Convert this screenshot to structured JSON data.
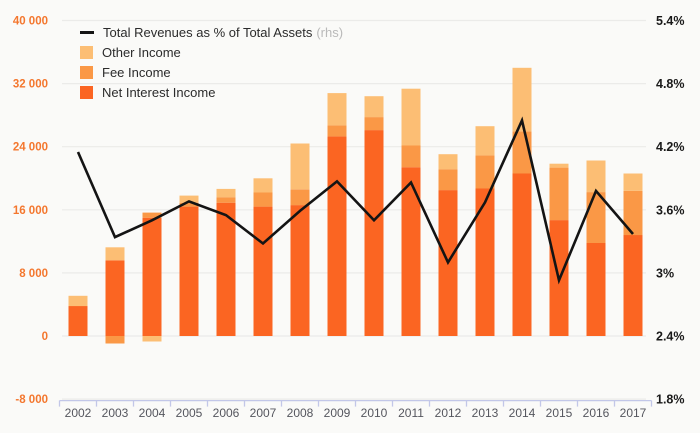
{
  "legend": {
    "line_label": "Total Revenues as % of Total Assets",
    "line_suffix": "(rhs)",
    "other_label": "Other Income",
    "fee_label": "Fee Income",
    "nii_label": "Net Interest Income"
  },
  "colors": {
    "background": "#fafaf8",
    "gridline": "#ebebe9",
    "axis_line": "#c2c7e8",
    "net_interest": "#fb6522",
    "fee": "#fa9846",
    "other": "#fcbe74",
    "line": "#141414",
    "left_tick_text": "#f4772e",
    "right_tick_text": "#1a1a1a",
    "year_text": "#55565e"
  },
  "chart_data": {
    "type": "bar-line-combo",
    "bar_mode": "stacked",
    "categories": [
      "2002",
      "2003",
      "2004",
      "2005",
      "2006",
      "2007",
      "2008",
      "2009",
      "2010",
      "2011",
      "2012",
      "2013",
      "2014",
      "2015",
      "2016",
      "2017"
    ],
    "series": [
      {
        "name": "Net Interest Income",
        "type": "bar",
        "color": "#fb6522",
        "values": [
          3800,
          9600,
          15000,
          16400,
          16900,
          16400,
          16600,
          25300,
          26100,
          21400,
          18500,
          18700,
          20600,
          14700,
          11800,
          12800
        ]
      },
      {
        "name": "Fee Income",
        "type": "bar",
        "color": "#fa9846",
        "values": [
          0,
          -950,
          650,
          500,
          700,
          1800,
          2000,
          1400,
          1650,
          2750,
          2650,
          4200,
          5350,
          6650,
          6450,
          5600
        ]
      },
      {
        "name": "Other Income",
        "type": "bar",
        "color": "#fcbe74",
        "values": [
          1300,
          1650,
          -700,
          900,
          1050,
          1800,
          5800,
          4100,
          2650,
          7200,
          1900,
          3700,
          8050,
          500,
          4000,
          2200
        ]
      },
      {
        "name": "Total Revenues as % of Total Assets",
        "type": "line",
        "axis": "right",
        "color": "#141414",
        "values": [
          4.15,
          3.34,
          3.5,
          3.68,
          3.55,
          3.28,
          3.59,
          3.87,
          3.5,
          3.86,
          3.1,
          3.67,
          4.45,
          2.93,
          3.78,
          3.37
        ]
      }
    ],
    "left_axis": {
      "min": -8000,
      "max": 40000,
      "step": 8000,
      "tick_labels": [
        "-8 000",
        "0",
        "8 000",
        "16 000",
        "24 000",
        "32 000",
        "40 000"
      ]
    },
    "right_axis": {
      "min": 1.8,
      "max": 5.4,
      "step": 0.6,
      "tick_labels": [
        "1.8%",
        "2.4%",
        "3%",
        "3.6%",
        "4.2%",
        "4.8%",
        "5.4%"
      ]
    },
    "grid": true,
    "legend_position": "top-left"
  }
}
